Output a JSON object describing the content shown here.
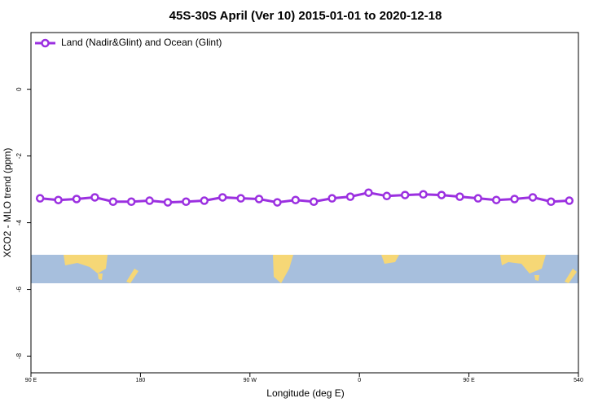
{
  "chart_data": {
    "type": "line",
    "title": "45S-30S April (Ver 10)   2015-01-01 to 2020-12-18",
    "xlabel": "Longitude (deg E)",
    "ylabel": "XCO2 - MLO trend (ppm)",
    "x": [
      97.5,
      112.5,
      127.5,
      142.5,
      157.5,
      172.5,
      187.5,
      202.5,
      217.5,
      232.5,
      247.5,
      262.5,
      277.5,
      292.5,
      307.5,
      322.5,
      337.5,
      352.5,
      367.5,
      382.5,
      397.5,
      412.5,
      427.5,
      442.5,
      457.5,
      472.5,
      487.5,
      502.5,
      517.5,
      532.5
    ],
    "series": [
      {
        "name": "Land (Nadir&Glint) and Ocean (Glint)",
        "color": "#9b30e0",
        "values": [
          -3.27,
          -3.32,
          -3.29,
          -3.24,
          -3.37,
          -3.37,
          -3.34,
          -3.39,
          -3.37,
          -3.34,
          -3.24,
          -3.27,
          -3.29,
          -3.39,
          -3.32,
          -3.37,
          -3.27,
          -3.22,
          -3.1,
          -3.2,
          -3.17,
          -3.15,
          -3.17,
          -3.22,
          -3.27,
          -3.32,
          -3.29,
          -3.24,
          -3.37,
          -3.34
        ]
      }
    ],
    "xlim": [
      90,
      540
    ],
    "xticks": [
      {
        "value": 90,
        "label": "90 E"
      },
      180,
      {
        "value": 270,
        "label": "90 W"
      },
      {
        "value": 360,
        "label": "0"
      },
      {
        "value": 450,
        "label": "90 E"
      },
      540
    ],
    "ylim": [
      -8.5,
      1.7
    ],
    "yticks": [
      0,
      -2,
      -4,
      -6,
      -8
    ],
    "legend": "upper left"
  }
}
